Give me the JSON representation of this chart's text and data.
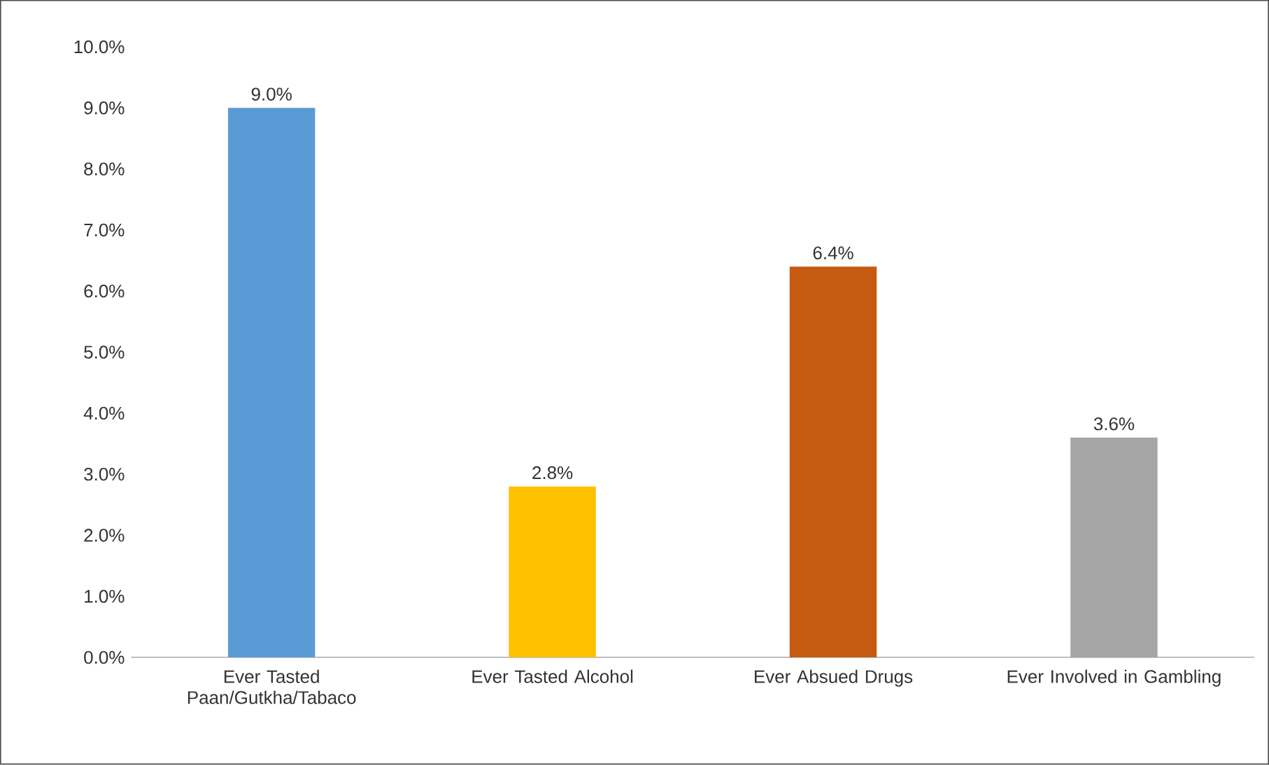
{
  "chart_data": {
    "type": "bar",
    "categories": [
      "Ever Tasted Paan/Gutkha/Tabaco",
      "Ever Tasted Alcohol",
      "Ever Absued Drugs",
      "Ever Involved in Gambling"
    ],
    "values": [
      9.0,
      2.8,
      6.4,
      3.6
    ],
    "colors": [
      "#5b9bd5",
      "#ffc000",
      "#c55a11",
      "#a5a5a5"
    ],
    "value_labels": [
      "9.0%",
      "2.8%",
      "6.4%",
      "3.6%"
    ],
    "ylim": [
      0,
      10
    ],
    "yticks": [
      {
        "value": 0,
        "label": "0.0%"
      },
      {
        "value": 1,
        "label": "1.0%"
      },
      {
        "value": 2,
        "label": "2.0%"
      },
      {
        "value": 3,
        "label": "3.0%"
      },
      {
        "value": 4,
        "label": "4.0%"
      },
      {
        "value": 5,
        "label": "5.0%"
      },
      {
        "value": 6,
        "label": "6.0%"
      },
      {
        "value": 7,
        "label": "7.0%"
      },
      {
        "value": 8,
        "label": "8.0%"
      },
      {
        "value": 9,
        "label": "9.0%"
      },
      {
        "value": 10,
        "label": "10.0%"
      }
    ],
    "grid": false
  }
}
